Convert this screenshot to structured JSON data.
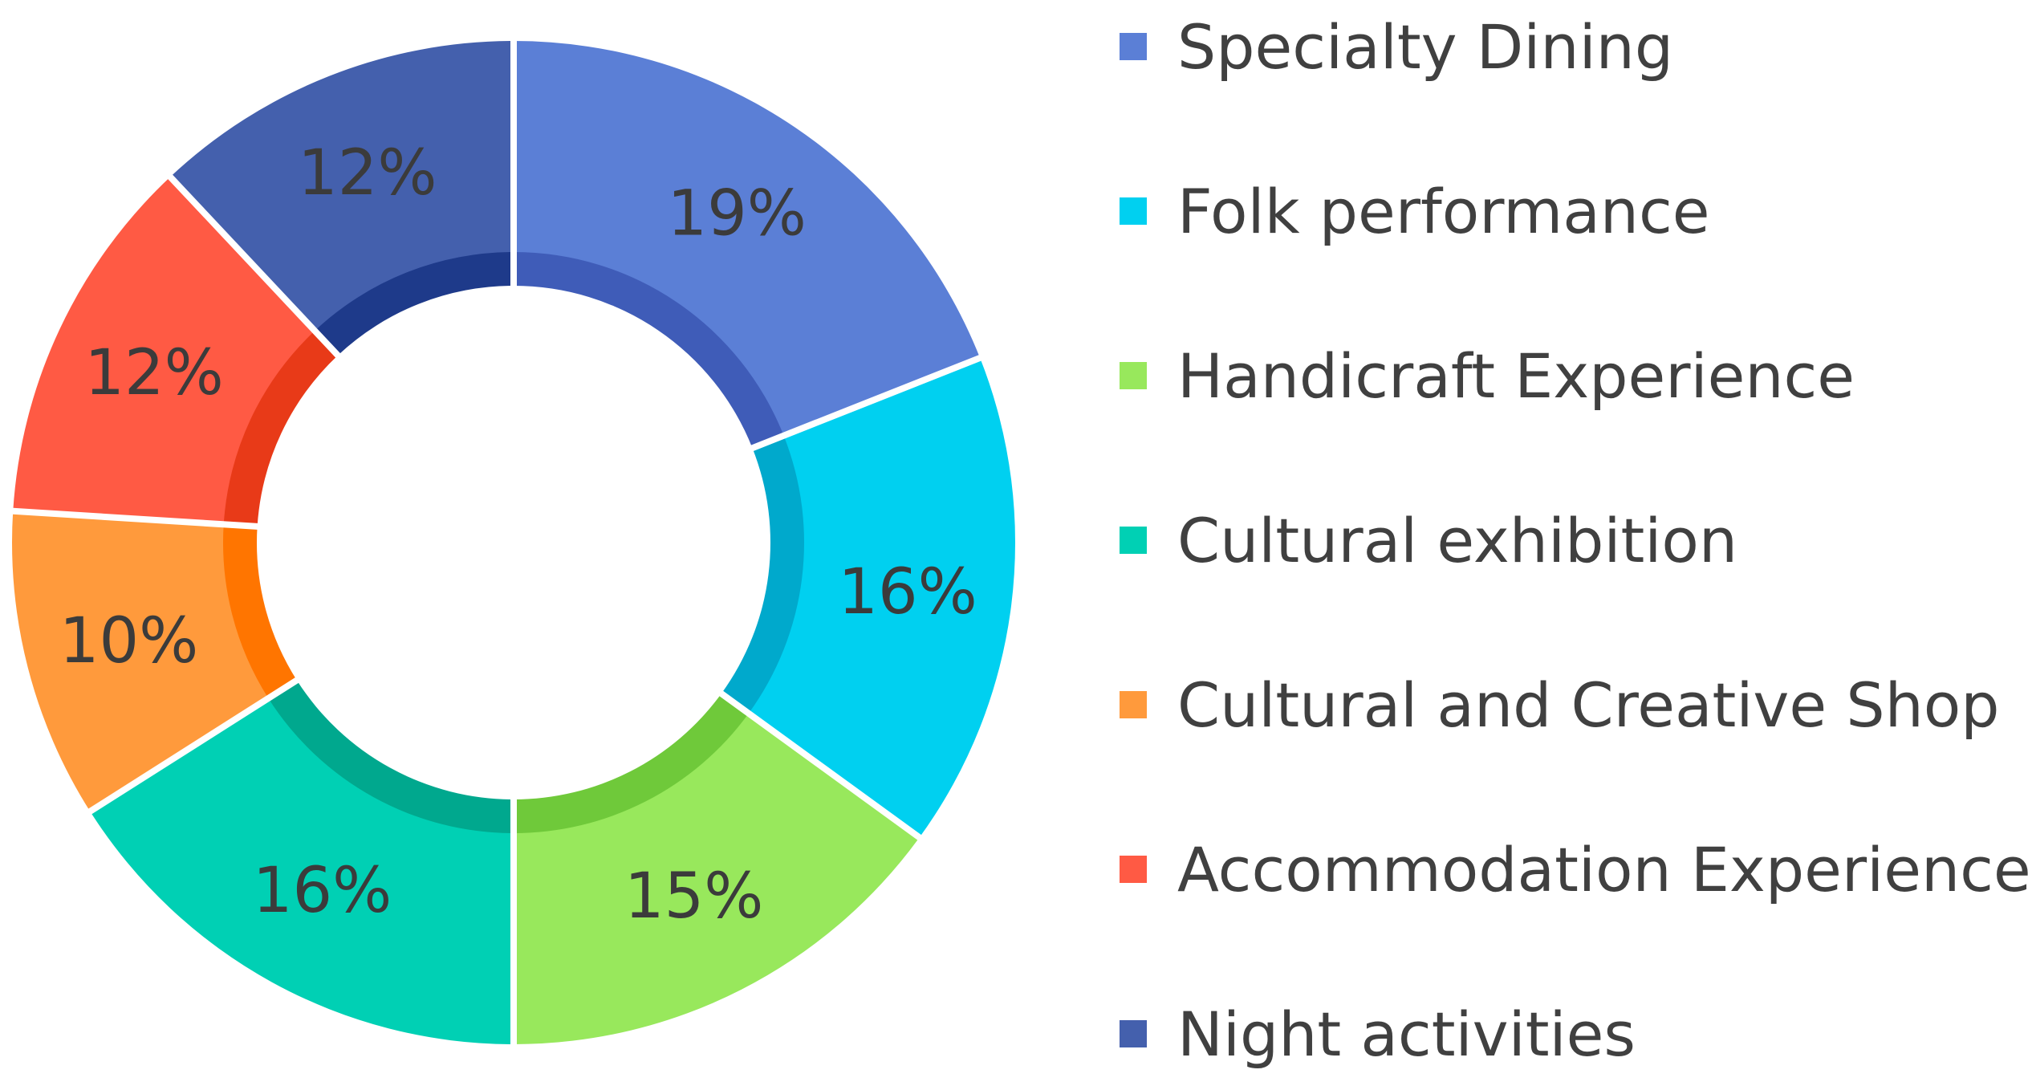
{
  "chart_data": {
    "type": "pie",
    "subtype": "donut",
    "title": "",
    "legend_position": "right",
    "categories": [
      "Specialty Dining",
      "Folk performance",
      "Handicraft Experience",
      "Cultural exhibition",
      "Cultural and Creative Shop",
      "Accommodation Experience",
      "Night activities"
    ],
    "values": [
      19,
      16,
      15,
      16,
      10,
      12,
      12
    ],
    "labels": [
      "19%",
      "16%",
      "15%",
      "16%",
      "10%",
      "12%",
      "12%"
    ],
    "colors": [
      "#5b7fd6",
      "#00d0f0",
      "#98e85c",
      "#00d0b4",
      "#ff9a3c",
      "#ff5a44",
      "#4460ad"
    ],
    "inner_colors": [
      "#3f5cb8",
      "#00a9cc",
      "#6fc93a",
      "#00a88e",
      "#ff7500",
      "#e83a18",
      "#1e3a8a"
    ]
  }
}
